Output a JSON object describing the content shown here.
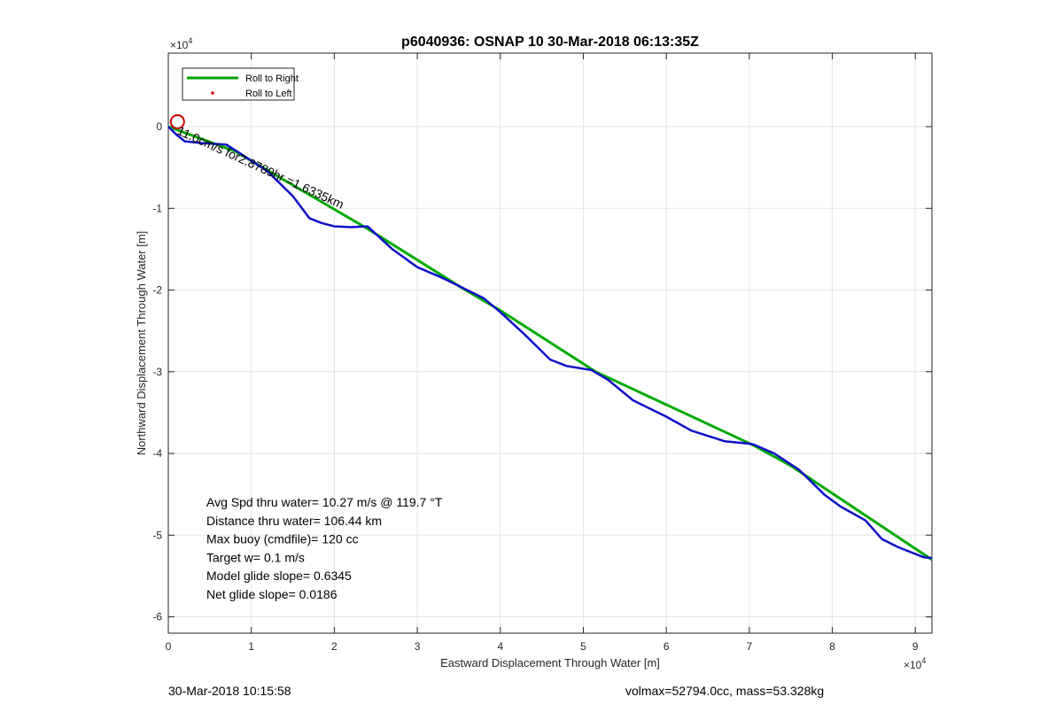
{
  "chart_data": {
    "type": "line",
    "title": "p6040936: OSNAP 10 30-Mar-2018 06:13:35Z",
    "xlabel": "Eastward Displacement Through Water [m]",
    "ylabel": "Northward Displacement Through Water [m]",
    "x_multiplier": "×10^4",
    "y_multiplier": "×10^4",
    "xlim": [
      0,
      9.2
    ],
    "ylim": [
      -6.2,
      0.9
    ],
    "xticks": [
      0,
      1,
      2,
      3,
      4,
      5,
      6,
      7,
      8,
      9
    ],
    "yticks": [
      0,
      -1,
      -2,
      -3,
      -4,
      -5,
      -6
    ],
    "grid": true,
    "legend": {
      "position": "top-left",
      "entries": [
        {
          "label": "Roll to Right",
          "color": "#00a000",
          "style": "line"
        },
        {
          "label": "Roll to Left",
          "color": "#e00000",
          "style": "dot"
        }
      ]
    },
    "series": [
      {
        "name": "Roll to Right",
        "color": "#00aa00",
        "x": [
          0,
          0.8,
          2.4,
          3.5,
          4.0,
          5.15,
          7.05,
          7.5,
          9.2
        ],
        "y": [
          0,
          -0.3,
          -1.25,
          -1.95,
          -2.25,
          -3.0,
          -3.9,
          -4.15,
          -5.3
        ]
      },
      {
        "name": "",
        "color": "#1010c8",
        "x": [
          0,
          0.1,
          0.2,
          0.4,
          0.7,
          0.9,
          1.2,
          1.5,
          1.7,
          1.85,
          2.0,
          2.2,
          2.4,
          2.7,
          3.0,
          3.3,
          3.5,
          3.8,
          4.0,
          4.3,
          4.6,
          4.8,
          5.1,
          5.3,
          5.6,
          6.0,
          6.3,
          6.7,
          7.0,
          7.05,
          7.3,
          7.6,
          7.9,
          8.1,
          8.4,
          8.6,
          8.8,
          9.1,
          9.2
        ],
        "y": [
          0,
          -0.1,
          -0.18,
          -0.2,
          -0.22,
          -0.35,
          -0.55,
          -0.85,
          -1.12,
          -1.18,
          -1.22,
          -1.23,
          -1.22,
          -1.5,
          -1.72,
          -1.85,
          -1.95,
          -2.1,
          -2.27,
          -2.55,
          -2.85,
          -2.93,
          -2.98,
          -3.1,
          -3.35,
          -3.55,
          -3.72,
          -3.85,
          -3.88,
          -3.89,
          -4.0,
          -4.2,
          -4.5,
          -4.65,
          -4.82,
          -5.05,
          -5.15,
          -5.27,
          -5.28
        ]
      }
    ],
    "markers": [
      {
        "shape": "circle",
        "color": "#d00000",
        "x": 0.11,
        "y": 0.06
      }
    ],
    "annotation": "11.0cm/s for2.8789hr =1.6335km",
    "stats": [
      "Avg Spd thru water= 10.27 m/s @ 119.7 °T",
      "Distance thru water= 106.44 km",
      "Max buoy (cmdfile)= 120 cc",
      "Target w= 0.1 m/s",
      "Model glide slope= 0.6345",
      "Net glide slope= 0.0186"
    ]
  },
  "footer": {
    "timestamp": "30-Mar-2018 10:15:58",
    "volmax_mass": "volmax=52794.0cc, mass=53.328kg"
  }
}
